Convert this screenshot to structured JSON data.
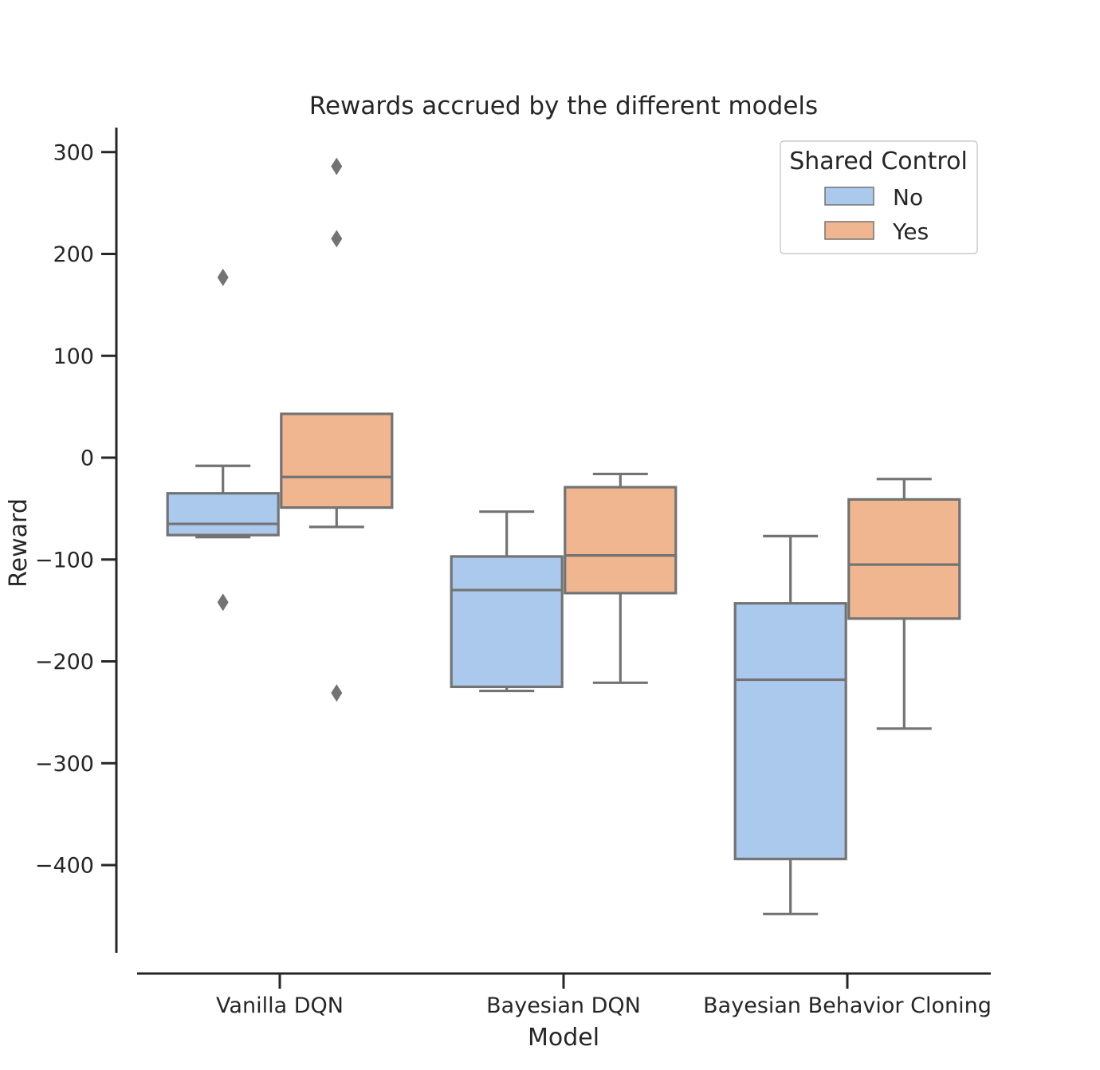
{
  "chart_data": {
    "type": "box",
    "title": "Rewards accrued by the different models",
    "xlabel": "Model",
    "ylabel": "Reward",
    "ylim": [
      -486,
      325
    ],
    "yticks": [
      300,
      200,
      100,
      0,
      -100,
      -200,
      -300,
      -400
    ],
    "ytick_labels": [
      "300",
      "200",
      "100",
      "0",
      "−100",
      "−200",
      "−300",
      "−400"
    ],
    "categories": [
      "Vanilla DQN",
      "Bayesian DQN",
      "Bayesian Behavior Cloning"
    ],
    "legend": {
      "title": "Shared Control",
      "position": "upper right"
    },
    "grid": false,
    "series": [
      {
        "name": "No",
        "color": "#abc9ed",
        "boxes": [
          {
            "whisker_low": -78,
            "q1": -76,
            "median": -65,
            "q3": -35,
            "whisker_high": -8,
            "outliers": [
              177,
              -142
            ]
          },
          {
            "whisker_low": -229,
            "q1": -225,
            "median": -130,
            "q3": -97,
            "whisker_high": -53,
            "outliers": []
          },
          {
            "whisker_low": -448,
            "q1": -394,
            "median": -218,
            "q3": -143,
            "whisker_high": -77,
            "outliers": []
          }
        ]
      },
      {
        "name": "Yes",
        "color": "#f0b690",
        "boxes": [
          {
            "whisker_low": -68,
            "q1": -49,
            "median": -19,
            "q3": 43,
            "whisker_high": 43,
            "outliers": [
              286,
              215,
              -231
            ]
          },
          {
            "whisker_low": -221,
            "q1": -133,
            "median": -96,
            "q3": -29,
            "whisker_high": -16,
            "outliers": []
          },
          {
            "whisker_low": -266,
            "q1": -158,
            "median": -105,
            "q3": -41,
            "whisker_high": -21,
            "outliers": []
          }
        ]
      }
    ],
    "line_color": "#737373"
  }
}
